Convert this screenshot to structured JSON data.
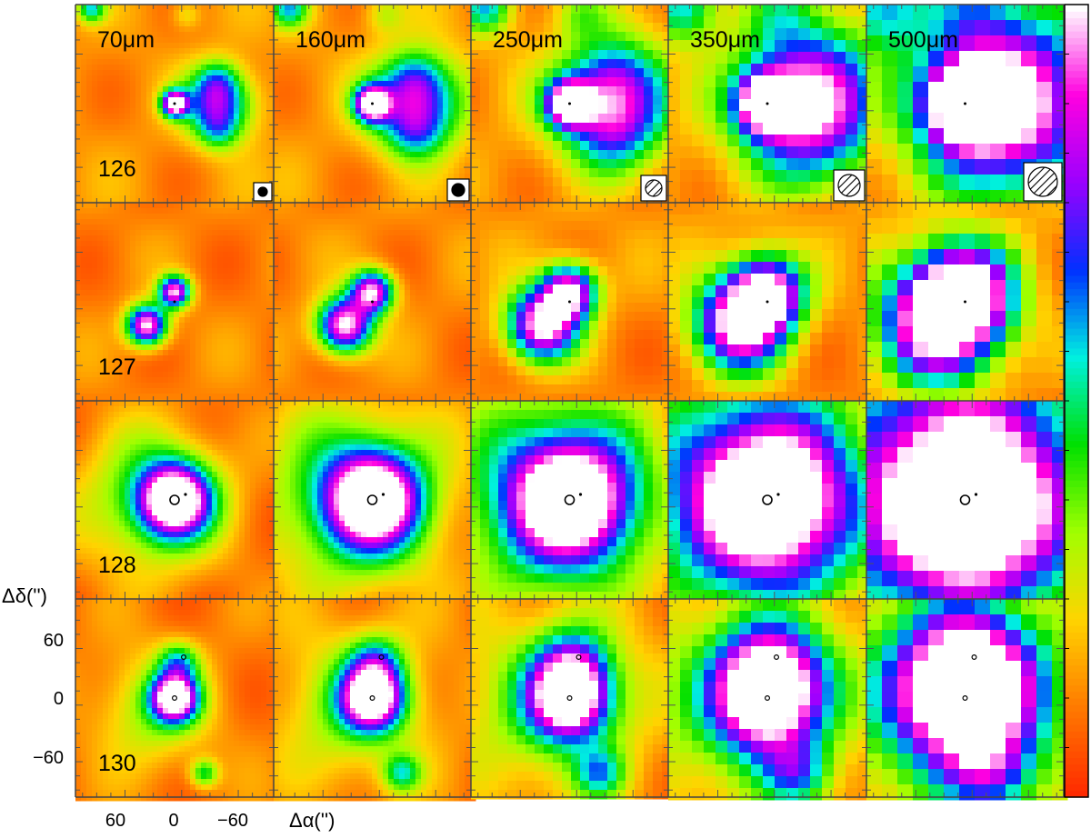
{
  "wavelengths": [
    "70μm",
    "160μm",
    "250μm",
    "350μm",
    "500μm"
  ],
  "sources": [
    "126",
    "127",
    "128",
    "130"
  ],
  "axes": {
    "dec_label": "Δδ('')",
    "ra_label": "Δα('')",
    "dec_ticks": [
      "60",
      "0",
      "−60"
    ],
    "ra_ticks": [
      "60",
      "0",
      "−60"
    ]
  },
  "colormap": [
    "#ff2a00",
    "#ff7a00",
    "#ffd400",
    "#a0ff00",
    "#00e000",
    "#00f0e0",
    "#0030ff",
    "#9a00ff",
    "#ff00e0",
    "#ffffff"
  ]
}
